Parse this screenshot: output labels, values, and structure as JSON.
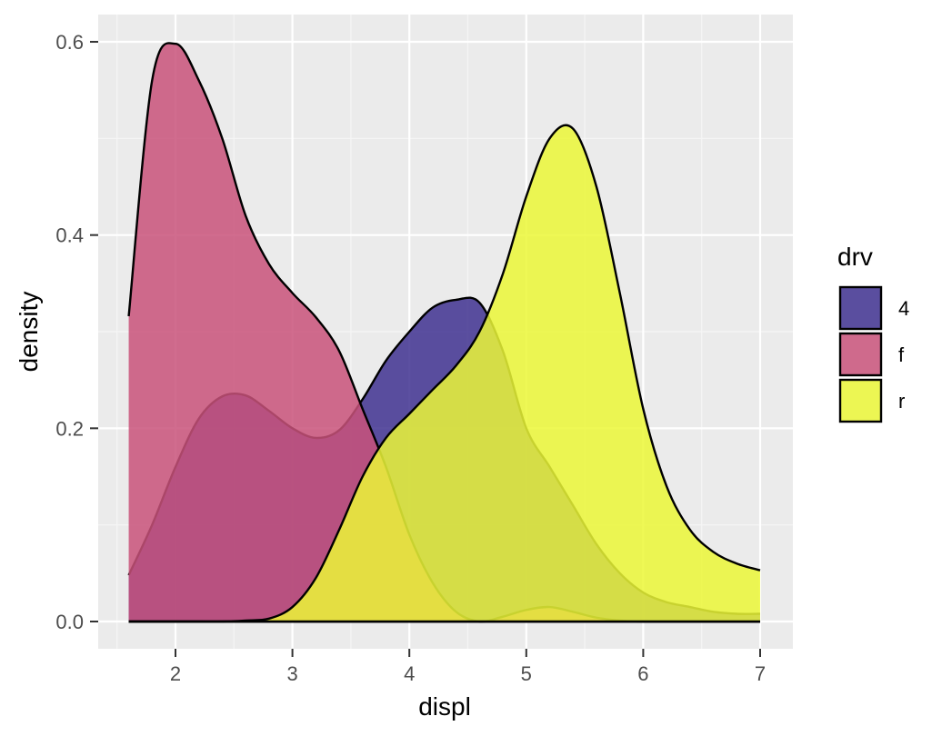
{
  "chart_data": {
    "type": "area",
    "xlabel": "displ",
    "ylabel": "density",
    "xlim": [
      1.6,
      7.0
    ],
    "ylim": [
      0,
      0.6
    ],
    "x_ticks": [
      2,
      3,
      4,
      5,
      6,
      7
    ],
    "x_tick_labels": [
      "2",
      "3",
      "4",
      "5",
      "6",
      "7"
    ],
    "y_ticks": [
      0.0,
      0.2,
      0.4,
      0.6
    ],
    "y_tick_labels": [
      "0.0",
      "0.2",
      "0.4",
      "0.6"
    ],
    "grid": true,
    "legend": {
      "title": "drv",
      "placement": "right"
    },
    "series": [
      {
        "name": "4",
        "color": "#3f3190",
        "x": [
          1.6,
          1.8,
          2.0,
          2.2,
          2.4,
          2.6,
          2.8,
          3.0,
          3.2,
          3.4,
          3.6,
          3.8,
          4.0,
          4.2,
          4.4,
          4.6,
          4.8,
          5.0,
          5.2,
          5.4,
          5.6,
          5.8,
          6.0,
          6.2,
          6.4,
          6.6,
          6.8,
          7.0
        ],
        "values": [
          0.048,
          0.1,
          0.16,
          0.21,
          0.233,
          0.234,
          0.218,
          0.2,
          0.19,
          0.198,
          0.23,
          0.27,
          0.3,
          0.325,
          0.333,
          0.33,
          0.28,
          0.2,
          0.16,
          0.12,
          0.08,
          0.05,
          0.03,
          0.02,
          0.015,
          0.01,
          0.008,
          0.008
        ]
      },
      {
        "name": "f",
        "color": "#c9527a",
        "x": [
          1.6,
          1.8,
          2.0,
          2.2,
          2.4,
          2.6,
          2.8,
          3.0,
          3.2,
          3.4,
          3.6,
          3.8,
          4.0,
          4.2,
          4.4,
          4.6,
          4.8,
          5.0,
          5.2,
          5.4,
          5.6,
          5.8,
          6.0,
          6.2,
          6.4,
          6.6,
          6.8,
          7.0
        ],
        "values": [
          0.316,
          0.56,
          0.598,
          0.56,
          0.5,
          0.42,
          0.37,
          0.34,
          0.315,
          0.28,
          0.22,
          0.16,
          0.09,
          0.04,
          0.01,
          0.0,
          0.005,
          0.012,
          0.015,
          0.01,
          0.004,
          0.001,
          0.0,
          0.0,
          0.0,
          0.0,
          0.0,
          0.0
        ]
      },
      {
        "name": "r",
        "color": "#ebf737",
        "x": [
          1.6,
          1.8,
          2.0,
          2.2,
          2.4,
          2.6,
          2.8,
          3.0,
          3.2,
          3.4,
          3.6,
          3.8,
          4.0,
          4.2,
          4.4,
          4.6,
          4.8,
          5.0,
          5.2,
          5.4,
          5.6,
          5.8,
          6.0,
          6.2,
          6.4,
          6.6,
          6.8,
          7.0
        ],
        "values": [
          0.0,
          0.0,
          0.0,
          0.0,
          0.0,
          0.001,
          0.003,
          0.015,
          0.045,
          0.095,
          0.15,
          0.19,
          0.215,
          0.24,
          0.265,
          0.3,
          0.36,
          0.44,
          0.5,
          0.51,
          0.45,
          0.34,
          0.22,
          0.14,
          0.095,
          0.072,
          0.06,
          0.053
        ]
      }
    ]
  }
}
